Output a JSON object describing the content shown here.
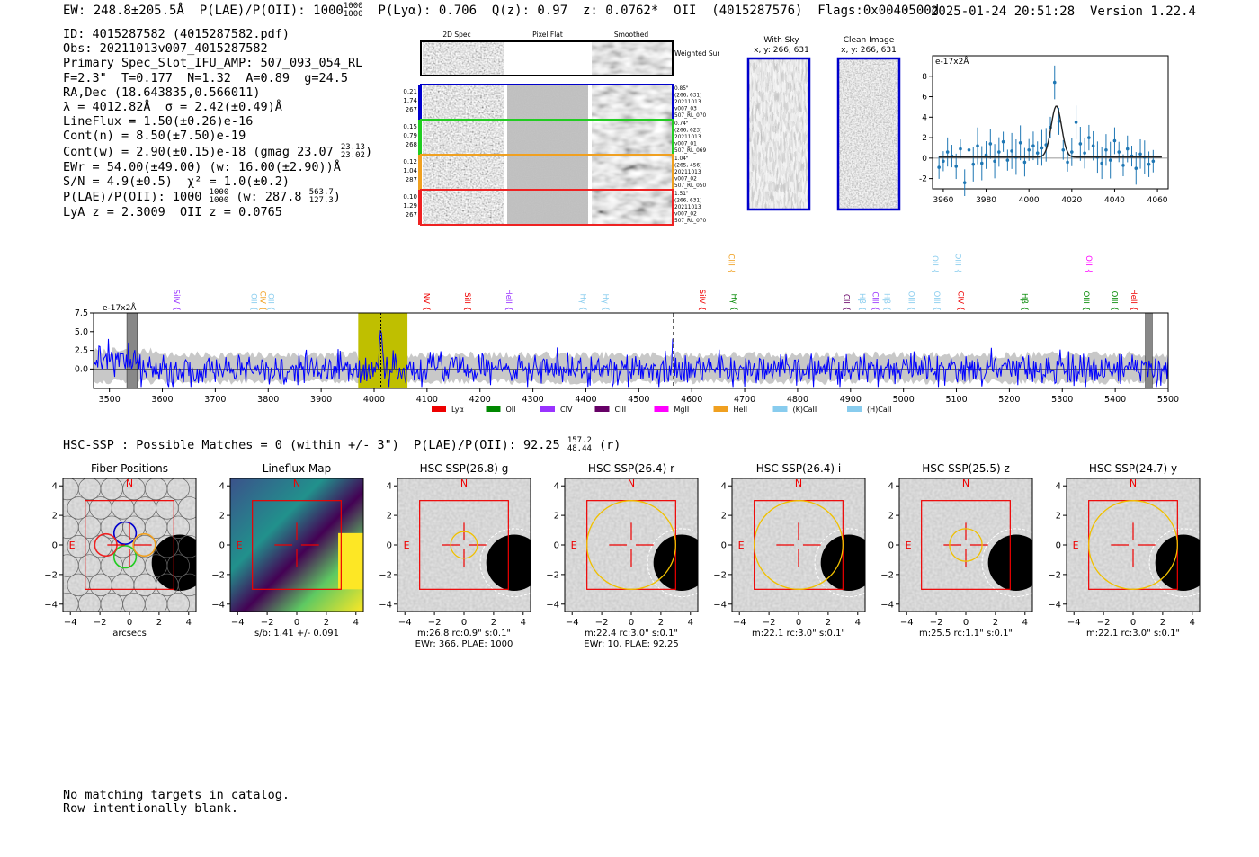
{
  "header": {
    "left": "EW: 248.8±205.5Å  P(LAE)/P(OII): 1000",
    "pl_num": "1000",
    "pl_den": "1000",
    "rest": "  P(Lyα): 0.706  Q(z): 0.97  z: 0.0762*  OII  (4015287576)  Flags:0x0040500d",
    "right": "2025-01-24 20:51:28  Version 1.22.4"
  },
  "info": {
    "id": "ID: 4015287582 (4015287582.pdf)",
    "obs": "Obs: 20211013v007_4015287582",
    "spec": "Primary Spec_Slot_IFU_AMP: 507_093_054_RL",
    "params": "F=2.3\"  T=0.177  N=1.32  A=0.89  g=24.5",
    "radec": "RA,Dec (18.643835,0.566011)",
    "lambda": "λ = 4012.82Å  σ = 2.42(±0.49)Å",
    "lineflux": "LineFlux = 1.50(±0.26)e-16",
    "cont_n": "Cont(n) = 8.50(±7.50)e-19",
    "cont_w": "Cont(w) = 2.90(±0.15)e-18 (gmag 23.07",
    "gmag_up": "23.13",
    "gmag_lo": "23.02",
    "ewr": "EWr = 54.00(±49.00) (w: 16.00(±2.90))Å",
    "sn": "S/N = 4.9(±0.5)  χ² = 1.0(±0.2)",
    "plae": "P(LAE)/P(OII): 1000",
    "plae_up": "1000",
    "plae_lo": "1000",
    "plae_w": " (w: 287.8",
    "plae_w_up": "563.7",
    "plae_w_lo": "127.3",
    "lya": "LyA z = 2.3009  OII z = 0.0765"
  },
  "cutouts": {
    "col_headers": [
      "2D Spec",
      "Pixel Flat",
      "Smoothed"
    ],
    "weighted_label": "Weighted Sum",
    "rows": [
      {
        "vals": [
          "0.21",
          "1.74",
          "267"
        ],
        "color": "#0000cc",
        "info": [
          "0.85\"",
          "(266, 631)",
          "20211013",
          "v007_03",
          "507_RL_070"
        ]
      },
      {
        "vals": [
          "0.15",
          "0.79",
          "268"
        ],
        "color": "#22cc22",
        "info": [
          "0.74\"",
          "(266, 623)",
          "20211013",
          "v007_01",
          "507_RL_069"
        ]
      },
      {
        "vals": [
          "0.12",
          "1.04",
          "287"
        ],
        "color": "#f0a020",
        "info": [
          "1.04\"",
          "(265, 456)",
          "20211013",
          "v007_02",
          "507_RL_050"
        ]
      },
      {
        "vals": [
          "0.10",
          "1.29",
          "267"
        ],
        "color": "#ee2222",
        "info": [
          "1.51\"",
          "(266, 631)",
          "20211013",
          "v007_02",
          "507_RL_070"
        ]
      }
    ]
  },
  "sky": {
    "with_sky_title": "With Sky",
    "with_sky_coord": "x, y: 266, 631",
    "clean_title": "Clean Image",
    "clean_coord": "x, y: 266, 631"
  },
  "hsc_title": "HSC-SSP : Possible Matches = 0 (within +/- 3\")  P(LAE)/P(OII): 92.25",
  "hsc_up": "157.2",
  "hsc_lo": "48.44",
  "hsc_band": " (r)",
  "footer": {
    "line1": "No matching targets in catalog.",
    "line2": "Row intentionally blank."
  },
  "colors": {
    "blue": "#0000ff",
    "accent": "#bfbf00",
    "fit": "#1f77b4"
  },
  "chart_data": [
    {
      "type": "scatter",
      "title": "Zoomed line fit",
      "ylabel": "e-17x2Å",
      "xlim": [
        3955,
        4065
      ],
      "ylim": [
        -3,
        10
      ],
      "xticks": [
        3960,
        3980,
        4000,
        4020,
        4040,
        4060
      ],
      "yticks": [
        -2,
        0,
        2,
        4,
        6,
        8
      ],
      "x": [
        3958,
        3960,
        3962,
        3964,
        3966,
        3968,
        3970,
        3972,
        3974,
        3976,
        3978,
        3980,
        3982,
        3984,
        3986,
        3988,
        3990,
        3992,
        3994,
        3996,
        3998,
        4000,
        4002,
        4004,
        4006,
        4008,
        4010,
        4012,
        4014,
        4016,
        4018,
        4020,
        4022,
        4024,
        4026,
        4028,
        4030,
        4032,
        4034,
        4036,
        4038,
        4040,
        4042,
        4044,
        4046,
        4048,
        4050,
        4052,
        4054,
        4056,
        4058
      ],
      "y": [
        -0.9,
        -0.3,
        0.6,
        0.2,
        -0.8,
        0.9,
        -2.4,
        0.8,
        -0.6,
        1.2,
        -0.5,
        0.3,
        1.4,
        -0.3,
        0.6,
        1.6,
        -0.2,
        0.7,
        0.1,
        1.5,
        -0.4,
        0.8,
        1.2,
        0.5,
        1.0,
        1.3,
        3.0,
        7.4,
        3.6,
        0.8,
        -0.4,
        0.6,
        3.5,
        1.4,
        0.5,
        2.0,
        1.2,
        0.1,
        -0.5,
        0.8,
        -0.2,
        1.7,
        0.6,
        -0.7,
        0.9,
        0.2,
        -1.0,
        0.4,
        0.1,
        -0.6,
        -0.3
      ],
      "fit": {
        "center": 4012.8,
        "sigma": 2.42,
        "amp": 5.0,
        "baseline": 0.1
      }
    },
    {
      "type": "line",
      "title": "Full spectrum",
      "ylabel": "e-17x2Å",
      "xlim": [
        3470,
        5500
      ],
      "ylim": [
        -2.6,
        7.5
      ],
      "xticks": [
        3500,
        3600,
        3700,
        3800,
        3900,
        4000,
        4100,
        4200,
        4300,
        4400,
        4500,
        4600,
        4700,
        4800,
        4900,
        5000,
        5100,
        5200,
        5300,
        5400,
        5500
      ],
      "yticks": [
        0.0,
        2.5,
        5.0,
        7.5
      ],
      "highlight": [
        3970,
        4063
      ],
      "line_marker": 4012.8,
      "dashed_marker": 4565,
      "masked": [
        [
          3533,
          3553
        ],
        [
          5457,
          5470
        ]
      ],
      "line_labels": [
        {
          "label": "SiIV",
          "x": 3622,
          "color": "#9933ff",
          "row": 1
        },
        {
          "label": "OII",
          "x": 3768,
          "color": "#88ccee",
          "row": 1
        },
        {
          "label": "CIV",
          "x": 3785,
          "color": "#f0a020",
          "row": 1
        },
        {
          "label": "OII",
          "x": 3800,
          "color": "#88ccee",
          "row": 1
        },
        {
          "label": "NV",
          "x": 4094,
          "color": "#ee0000",
          "row": 1
        },
        {
          "label": "SiII",
          "x": 4172,
          "color": "#ee0000",
          "row": 1
        },
        {
          "label": "HeII",
          "x": 4250,
          "color": "#9933ff",
          "row": 1
        },
        {
          "label": "Hγ",
          "x": 4390,
          "color": "#88ccee",
          "row": 1
        },
        {
          "label": "Hγ",
          "x": 4432,
          "color": "#88ccee",
          "row": 1
        },
        {
          "label": "SiIV",
          "x": 4615,
          "color": "#ee0000",
          "row": 1
        },
        {
          "label": "CIII",
          "x": 4670,
          "color": "#f0a020",
          "row": 0
        },
        {
          "label": "Hγ",
          "x": 4675,
          "color": "#008800",
          "row": 1
        },
        {
          "label": "CII",
          "x": 4888,
          "color": "#660066",
          "row": 1
        },
        {
          "label": "Hβ",
          "x": 4917,
          "color": "#88ccee",
          "row": 1
        },
        {
          "label": "CIII",
          "x": 4942,
          "color": "#9933ff",
          "row": 1
        },
        {
          "label": "Hβ",
          "x": 4964,
          "color": "#88ccee",
          "row": 1
        },
        {
          "label": "OIII",
          "x": 5010,
          "color": "#88ccee",
          "row": 1
        },
        {
          "label": "OII",
          "x": 5055,
          "color": "#88ccee",
          "row": 0
        },
        {
          "label": "OIII",
          "x": 5058,
          "color": "#88ccee",
          "row": 1
        },
        {
          "label": "OIII",
          "x": 5098,
          "color": "#88ccee",
          "row": 0
        },
        {
          "label": "CIV",
          "x": 5103,
          "color": "#ee0000",
          "row": 1
        },
        {
          "label": "Hβ",
          "x": 5224,
          "color": "#008800",
          "row": 1
        },
        {
          "label": "OII",
          "x": 5345,
          "color": "#ff00ff",
          "row": 0
        },
        {
          "label": "OIII",
          "x": 5340,
          "color": "#008800",
          "row": 1
        },
        {
          "label": "OIII",
          "x": 5394,
          "color": "#008800",
          "row": 1
        },
        {
          "label": "HeII",
          "x": 5430,
          "color": "#ee0000",
          "row": 1
        }
      ],
      "legend": [
        {
          "label": "Lyα",
          "color": "#ee0000"
        },
        {
          "label": "OII",
          "color": "#008800"
        },
        {
          "label": "CIV",
          "color": "#9933ff"
        },
        {
          "label": "CIII",
          "color": "#660066"
        },
        {
          "label": "MgII",
          "color": "#ff00ff"
        },
        {
          "label": "HeII",
          "color": "#f0a020"
        },
        {
          "label": "(K)CaII",
          "color": "#88ccee"
        },
        {
          "label": "(H)CaII",
          "color": "#88ccee"
        }
      ]
    },
    {
      "type": "heatmap",
      "panels": [
        {
          "title": "Fiber Positions",
          "sub1": "arcsecs",
          "sub2": "",
          "circle": "fibers",
          "r": 0
        },
        {
          "title": "Lineflux Map",
          "sub1": "s/b: 1.41 +/- 0.091",
          "sub2": "",
          "circle": "none",
          "r": 0
        },
        {
          "title": "HSC SSP(26.8) g",
          "sub1": "m:26.8 rc:0.9\"  s:0.1\"",
          "sub2": "EWr: 366, PLAE: 1000",
          "circle": "yellow",
          "r": 0.9
        },
        {
          "title": "HSC SSP(26.4) r",
          "sub1": "m:22.4 rc:3.0\"  s:0.1\"",
          "sub2": "EWr: 10, PLAE: 92.25",
          "circle": "yellow",
          "r": 3.0
        },
        {
          "title": "HSC SSP(26.4) i",
          "sub1": "m:22.1 rc:3.0\"  s:0.1\"",
          "sub2": "",
          "circle": "yellow",
          "r": 3.0
        },
        {
          "title": "HSC SSP(25.5) z",
          "sub1": "m:25.5 rc:1.1\"  s:0.1\"",
          "sub2": "",
          "circle": "yellow",
          "r": 1.1
        },
        {
          "title": "HSC SSP(24.7) y",
          "sub1": "m:22.1 rc:3.0\"  s:0.1\"",
          "sub2": "",
          "circle": "yellow",
          "r": 3.0
        }
      ],
      "axis_ticks": [
        -4,
        -2,
        0,
        2,
        4
      ],
      "n_label": "N",
      "e_label": "E"
    }
  ]
}
